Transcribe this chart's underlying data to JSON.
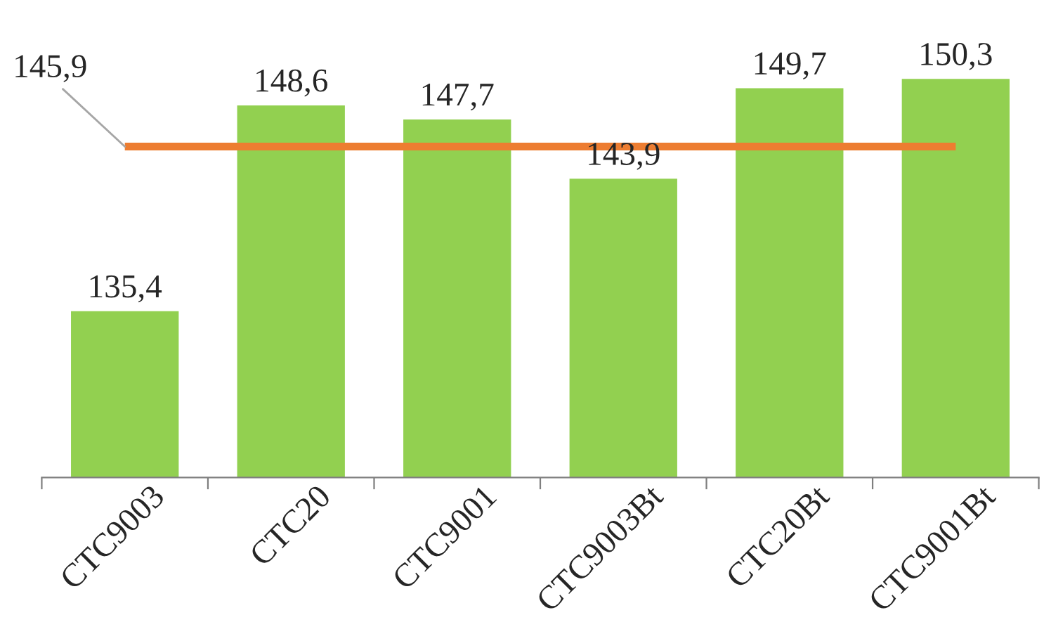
{
  "chart_data": {
    "type": "bar",
    "categories": [
      "CTC9003",
      "CTC20",
      "CTC9001",
      "CTC9003Bt",
      "CTC20Bt",
      "CTC9001Bt"
    ],
    "values": [
      135.4,
      148.6,
      147.7,
      143.9,
      149.7,
      150.3
    ],
    "value_labels": [
      "135,4",
      "148,6",
      "147,7",
      "143,9",
      "149,7",
      "150,3"
    ],
    "color": "#92d050",
    "tick_labels": "x",
    "grid": false,
    "legend": false,
    "ref_lines": [
      {
        "axis": "y",
        "value": 145.9,
        "label": "145,9",
        "color": "#ed7d31",
        "line_style": "solid"
      }
    ]
  }
}
